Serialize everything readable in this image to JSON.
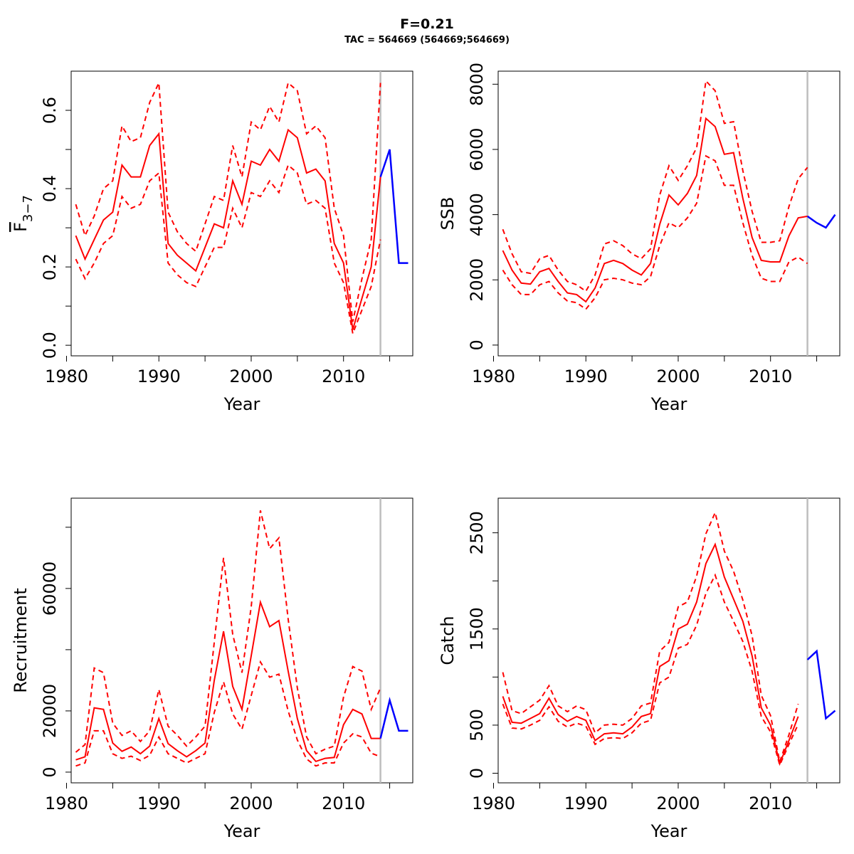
{
  "title": "F=0.21",
  "subtitle": "TAC = 564669 (564669;564669)",
  "colors": {
    "estimate": "#ff0000",
    "forecast": "#0000ff",
    "divider": "#bebebe"
  },
  "chart_data": [
    {
      "type": "line",
      "id": "fbar",
      "xlabel": "Year",
      "ylabel_main": "F",
      "ylabel_sub": "3−7",
      "xlim": [
        1980.5,
        2017.5
      ],
      "ylim": [
        -0.027,
        0.7
      ],
      "xticks": [
        1980,
        1990,
        2000,
        2010
      ],
      "xminor": [
        1985,
        1995,
        2005,
        2015
      ],
      "yticks": [
        0.0,
        0.2,
        0.4,
        0.6
      ],
      "ytick_labels": [
        "0.0",
        "0.2",
        "0.4",
        "0.6"
      ],
      "yminor": [
        0.1,
        0.3,
        0.5
      ],
      "divider_year": 2014,
      "x": [
        1981,
        1982,
        1983,
        1984,
        1985,
        1986,
        1987,
        1988,
        1989,
        1990,
        1991,
        1992,
        1993,
        1994,
        1995,
        1996,
        1997,
        1998,
        1999,
        2000,
        2001,
        2002,
        2003,
        2004,
        2005,
        2006,
        2007,
        2008,
        2009,
        2010,
        2011,
        2012,
        2013,
        2014
      ],
      "estimate": [
        0.28,
        0.22,
        0.27,
        0.32,
        0.34,
        0.46,
        0.43,
        0.43,
        0.51,
        0.54,
        0.26,
        0.23,
        0.21,
        0.19,
        0.25,
        0.31,
        0.3,
        0.42,
        0.36,
        0.47,
        0.46,
        0.5,
        0.47,
        0.55,
        0.53,
        0.44,
        0.45,
        0.42,
        0.26,
        0.21,
        0.04,
        0.12,
        0.2,
        0.43
      ],
      "upper": [
        0.36,
        0.28,
        0.33,
        0.4,
        0.42,
        0.56,
        0.52,
        0.53,
        0.62,
        0.67,
        0.34,
        0.29,
        0.26,
        0.24,
        0.31,
        0.38,
        0.37,
        0.51,
        0.43,
        0.57,
        0.55,
        0.61,
        0.57,
        0.67,
        0.65,
        0.54,
        0.56,
        0.53,
        0.35,
        0.28,
        0.06,
        0.17,
        0.27,
        0.67
      ],
      "lower": [
        0.22,
        0.17,
        0.21,
        0.26,
        0.28,
        0.38,
        0.35,
        0.36,
        0.42,
        0.44,
        0.21,
        0.18,
        0.16,
        0.15,
        0.2,
        0.25,
        0.25,
        0.35,
        0.3,
        0.39,
        0.38,
        0.42,
        0.39,
        0.46,
        0.44,
        0.36,
        0.37,
        0.35,
        0.21,
        0.16,
        0.03,
        0.09,
        0.15,
        0.27
      ],
      "forecast": {
        "x": [
          2014,
          2015,
          2016,
          2017
        ],
        "values": [
          0.43,
          0.5,
          0.21,
          0.21
        ]
      }
    },
    {
      "type": "line",
      "id": "ssb",
      "xlabel": "Year",
      "ylabel": "SSB",
      "xlim": [
        1980.5,
        2017.5
      ],
      "ylim": [
        -330,
        8400
      ],
      "xticks": [
        1980,
        1990,
        2000,
        2010
      ],
      "xminor": [
        1985,
        1995,
        2005,
        2015
      ],
      "yticks": [
        0,
        2000,
        4000,
        6000,
        8000
      ],
      "ytick_labels": [
        "0",
        "2000",
        "4000",
        "6000",
        "8000"
      ],
      "divider_year": 2014,
      "x": [
        1981,
        1982,
        1983,
        1984,
        1985,
        1986,
        1987,
        1988,
        1989,
        1990,
        1991,
        1992,
        1993,
        1994,
        1995,
        1996,
        1997,
        1998,
        1999,
        2000,
        2001,
        2002,
        2003,
        2004,
        2005,
        2006,
        2007,
        2008,
        2009,
        2010,
        2011,
        2012,
        2013,
        2014
      ],
      "estimate": [
        2900,
        2300,
        1900,
        1870,
        2250,
        2350,
        1950,
        1600,
        1550,
        1330,
        1750,
        2500,
        2600,
        2500,
        2300,
        2150,
        2500,
        3700,
        4600,
        4300,
        4650,
        5200,
        6950,
        6700,
        5850,
        5900,
        4500,
        3300,
        2600,
        2550,
        2550,
        3350,
        3900,
        3950
      ],
      "upper": [
        3550,
        2800,
        2250,
        2200,
        2650,
        2750,
        2300,
        1950,
        1850,
        1650,
        2150,
        3100,
        3200,
        3050,
        2800,
        2650,
        2950,
        4600,
        5500,
        5050,
        5500,
        6050,
        8100,
        7800,
        6800,
        6850,
        5350,
        4100,
        3150,
        3150,
        3200,
        4250,
        5100,
        5450
      ],
      "lower": [
        2300,
        1850,
        1550,
        1550,
        1850,
        1950,
        1600,
        1350,
        1300,
        1100,
        1450,
        2000,
        2050,
        2000,
        1900,
        1850,
        2100,
        3050,
        3750,
        3600,
        3900,
        4350,
        5800,
        5650,
        4900,
        4900,
        3750,
        2750,
        2050,
        1950,
        1950,
        2550,
        2700,
        2500
      ],
      "forecast": {
        "x": [
          2014,
          2015,
          2016,
          2017
        ],
        "values": [
          3950,
          3750,
          3600,
          4000
        ]
      }
    },
    {
      "type": "line",
      "id": "recruitment",
      "xlabel": "Year",
      "ylabel": "Recruitment",
      "xlim": [
        1980.5,
        2017.5
      ],
      "ylim": [
        -3500,
        89500
      ],
      "xticks": [
        1980,
        1990,
        2000,
        2010
      ],
      "xminor": [
        1985,
        1995,
        2005,
        2015
      ],
      "yticks": [
        0,
        20000,
        60000
      ],
      "ytick_labels": [
        "0",
        "20000",
        "60000"
      ],
      "yminor": [
        40000,
        80000
      ],
      "divider_year": 2014,
      "x": [
        1981,
        1982,
        1983,
        1984,
        1985,
        1986,
        1987,
        1988,
        1989,
        1990,
        1991,
        1992,
        1993,
        1994,
        1995,
        1996,
        1997,
        1998,
        1999,
        2000,
        2001,
        2002,
        2003,
        2004,
        2005,
        2006,
        2007,
        2008,
        2009,
        2010,
        2011,
        2012,
        2013,
        2014
      ],
      "estimate": [
        4000,
        5000,
        21000,
        20500,
        9500,
        6800,
        8200,
        6000,
        8500,
        17500,
        9300,
        7000,
        5000,
        7000,
        9500,
        30000,
        46000,
        28000,
        20500,
        38000,
        55500,
        47500,
        49500,
        33000,
        17500,
        7000,
        3500,
        4500,
        4800,
        15500,
        20500,
        19000,
        11000,
        11000
      ],
      "upper": [
        6500,
        9000,
        34000,
        32500,
        16000,
        12000,
        13500,
        10000,
        13500,
        27000,
        15000,
        12000,
        8500,
        11500,
        15000,
        42500,
        70000,
        45000,
        32500,
        54000,
        85500,
        73000,
        76500,
        50000,
        27500,
        11500,
        6000,
        7500,
        8500,
        24500,
        34500,
        33000,
        20500,
        27500
      ],
      "lower": [
        2000,
        3000,
        13500,
        13500,
        6000,
        4500,
        5200,
        3800,
        5500,
        11500,
        6000,
        4500,
        3000,
        4500,
        6000,
        19500,
        29500,
        19000,
        14000,
        25000,
        36000,
        31000,
        32000,
        20000,
        10500,
        4300,
        2000,
        3000,
        3000,
        9500,
        12500,
        11500,
        6200,
        5000
      ],
      "forecast": {
        "x": [
          2014,
          2015,
          2016,
          2017
        ],
        "values": [
          11000,
          23500,
          13500,
          13500
        ]
      }
    },
    {
      "type": "line",
      "id": "catch",
      "xlabel": "Year",
      "ylabel": "Catch",
      "xlim": [
        1980.5,
        2017.5
      ],
      "ylim": [
        -100,
        2860
      ],
      "xticks": [
        1980,
        1990,
        2000,
        2010
      ],
      "xminor": [
        1985,
        1995,
        2005,
        2015
      ],
      "yticks": [
        0,
        500,
        1500,
        2500
      ],
      "ytick_labels": [
        "0",
        "500",
        "1500",
        "2500"
      ],
      "yminor": [
        1000,
        2000
      ],
      "divider_year": 2014,
      "x": [
        1981,
        1982,
        1983,
        1984,
        1985,
        1986,
        1987,
        1988,
        1989,
        1990,
        1991,
        1992,
        1993,
        1994,
        1995,
        1996,
        1997,
        1998,
        1999,
        2000,
        2001,
        2002,
        2003,
        2004,
        2005,
        2006,
        2007,
        2008,
        2009,
        2010,
        2011,
        2012,
        2013
      ],
      "estimate": [
        800,
        530,
        520,
        570,
        620,
        780,
        610,
        540,
        590,
        550,
        340,
        410,
        420,
        410,
        480,
        590,
        620,
        1110,
        1170,
        1500,
        1550,
        1780,
        2180,
        2380,
        2040,
        1810,
        1580,
        1220,
        680,
        500,
        100,
        340,
        590
      ],
      "upper": [
        1050,
        650,
        620,
        690,
        760,
        910,
        700,
        640,
        700,
        660,
        420,
        500,
        510,
        500,
        570,
        700,
        730,
        1270,
        1360,
        1730,
        1780,
        2050,
        2490,
        2710,
        2310,
        2100,
        1800,
        1430,
        810,
        600,
        120,
        400,
        720
      ],
      "lower": [
        720,
        470,
        460,
        500,
        550,
        690,
        540,
        480,
        520,
        490,
        300,
        360,
        370,
        360,
        420,
        520,
        550,
        940,
        1000,
        1300,
        1340,
        1540,
        1870,
        2060,
        1780,
        1580,
        1370,
        1060,
        590,
        430,
        85,
        300,
        510
      ],
      "forecast": {
        "x": [
          2014,
          2015,
          2016,
          2017
        ],
        "values": [
          1180,
          1270,
          570,
          650
        ]
      }
    }
  ]
}
